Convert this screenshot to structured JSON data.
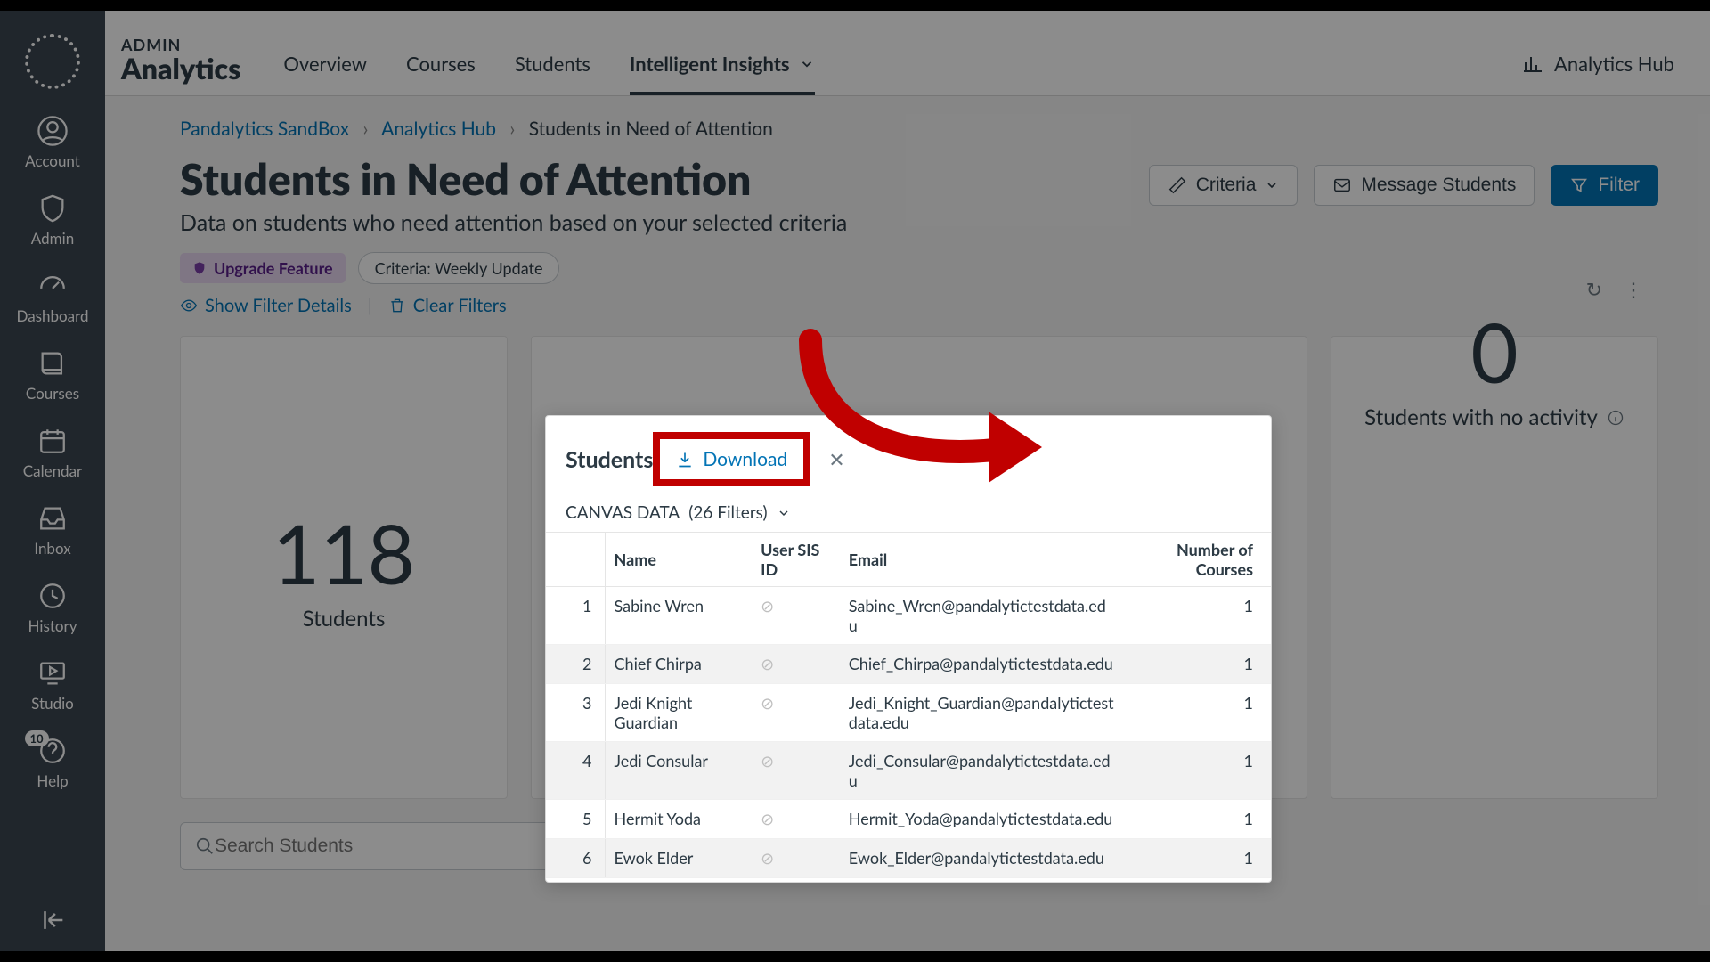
{
  "brand": {
    "small": "ADMIN",
    "big": "Analytics"
  },
  "tabs": {
    "overview": "Overview",
    "courses": "Courses",
    "students": "Students",
    "insights": "Intelligent Insights"
  },
  "hub_link": "Analytics Hub",
  "rail": {
    "account": "Account",
    "admin": "Admin",
    "dashboard": "Dashboard",
    "courses": "Courses",
    "calendar": "Calendar",
    "inbox": "Inbox",
    "history": "History",
    "studio": "Studio",
    "help": "Help",
    "help_badge": "10"
  },
  "crumbs": {
    "a": "Pandalytics SandBox",
    "b": "Analytics Hub",
    "c": "Students in Need of Attention"
  },
  "page": {
    "title": "Students in Need of Attention",
    "subtitle": "Data on students who need attention based on your selected criteria"
  },
  "actions": {
    "criteria": "Criteria",
    "message": "Message Students",
    "filter": "Filter"
  },
  "chips": {
    "upgrade": "Upgrade Feature",
    "criteria": "Criteria: Weekly Update"
  },
  "filter_links": {
    "show": "Show Filter Details",
    "clear": "Clear Filters"
  },
  "cards": {
    "students_num": "118",
    "students_cap": "Students",
    "noact_num": "0",
    "noact_cap": "Students with no activity"
  },
  "search": {
    "placeholder": "Search Students"
  },
  "popover": {
    "title": "Students",
    "download": "Download",
    "data_label": "CANVAS DATA",
    "filters_label": "(26 Filters)",
    "cols": {
      "name": "Name",
      "sis": "User SIS ID",
      "email": "Email",
      "courses": "Number of Courses"
    },
    "rows": [
      {
        "i": "1",
        "name": "Sabine Wren",
        "email": "Sabine_Wren@pandalytictestdata.edu",
        "courses": "1"
      },
      {
        "i": "2",
        "name": "Chief Chirpa",
        "email": "Chief_Chirpa@pandalytictestdata.edu",
        "courses": "1"
      },
      {
        "i": "3",
        "name": "Jedi Knight Guardian",
        "email": "Jedi_Knight_Guardian@pandalytictestdata.edu",
        "courses": "1"
      },
      {
        "i": "4",
        "name": "Jedi Consular",
        "email": "Jedi_Consular@pandalytictestdata.edu",
        "courses": "1"
      },
      {
        "i": "5",
        "name": "Hermit Yoda",
        "email": "Hermit_Yoda@pandalytictestdata.edu",
        "courses": "1"
      },
      {
        "i": "6",
        "name": "Ewok Elder",
        "email": "Ewok_Elder@pandalytictestdata.edu",
        "courses": "1"
      }
    ]
  },
  "colors": {
    "link": "#0374b5",
    "rail": "#3b4551",
    "highlight_border": "#c00000"
  }
}
